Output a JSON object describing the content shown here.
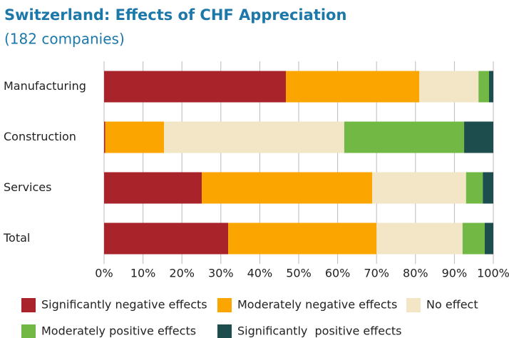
{
  "chart_data": {
    "type": "stacked-barh",
    "title": "Switzerland: Effects of CHF Appreciation",
    "subtitle": "(182 companies)",
    "categories": [
      "Manufacturing",
      "Construction",
      "Services",
      "Total"
    ],
    "series": [
      {
        "name": "Significantly negative effects",
        "color": "#a8232a",
        "values": [
          46.7,
          0.3,
          25.1,
          31.9
        ]
      },
      {
        "name": "Moderately negative effects",
        "color": "#fba500",
        "values": [
          34.3,
          15.1,
          43.8,
          38.1
        ]
      },
      {
        "name": "No effect",
        "color": "#f2e6c6",
        "values": [
          15.2,
          46.3,
          24.1,
          22.1
        ]
      },
      {
        "name": "Moderately positive effects",
        "color": "#72b845",
        "values": [
          2.7,
          30.8,
          4.3,
          5.7
        ]
      },
      {
        "name": "Significantly  positive effects",
        "color": "#1d4d4d",
        "values": [
          1.1,
          7.5,
          2.7,
          2.2
        ]
      }
    ],
    "xlim": [
      0,
      100
    ],
    "xticks": [
      {
        "value": 0,
        "label": "0%"
      },
      {
        "value": 10,
        "label": "10%"
      },
      {
        "value": 20,
        "label": "20%"
      },
      {
        "value": 30,
        "label": "30%"
      },
      {
        "value": 40,
        "label": "40%"
      },
      {
        "value": 50,
        "label": "50%"
      },
      {
        "value": 60,
        "label": "60%"
      },
      {
        "value": 70,
        "label": "70%"
      },
      {
        "value": 80,
        "label": "80%"
      },
      {
        "value": 90,
        "label": "90%"
      },
      {
        "value": 100,
        "label": "100%"
      }
    ],
    "grid": true
  }
}
